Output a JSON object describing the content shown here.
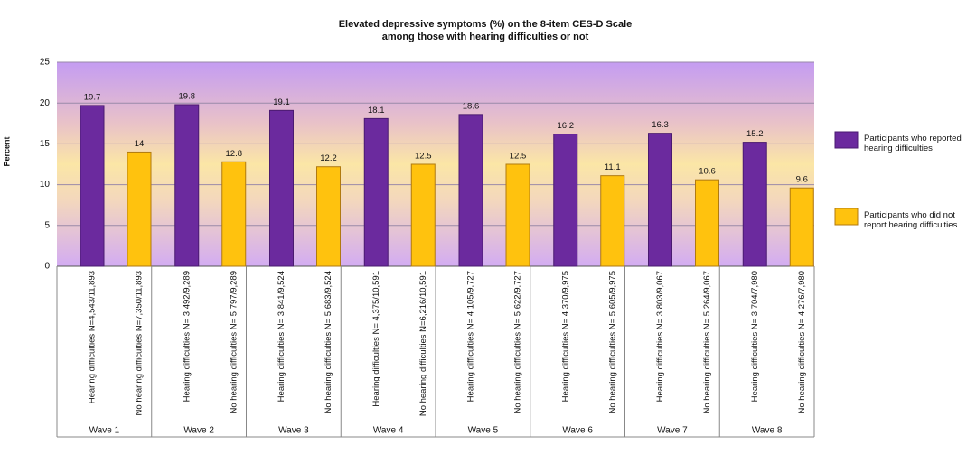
{
  "chart_data": {
    "type": "bar",
    "title": "Elevated depressive symptoms (%) on the 8-item CES-D Scale",
    "subtitle": "among those with hearing difficulties or not",
    "y_label": "Percent",
    "categories": [
      "Wave 1",
      "Wave 2",
      "Wave 3",
      "Wave 4",
      "Wave 5",
      "Wave 6",
      "Wave 7",
      "Wave 8"
    ],
    "ylim": [
      0,
      25
    ],
    "yticks": [
      0,
      5,
      10,
      15,
      20,
      25
    ],
    "grid": true,
    "series": [
      {
        "name": "Participants who reported hearing difficulties",
        "color": "#6b2a9e",
        "values": [
          19.7,
          19.8,
          19.1,
          18.1,
          18.6,
          16.2,
          16.3,
          15.2
        ],
        "bar_labels": [
          "Hearing difficulties N=4,543/11,893",
          "Hearing difficulties N= 3,492/9,289",
          "Hearing difficulties N= 3,841/9,524",
          "Hearing difficulties N= 4,375/10,591",
          "Hearing difficulties N= 4,105/9,727",
          "Hearing difficulties N= 4,370/9,975",
          "Hearing difficulties N= 3,803/9,067",
          "Hearing difficulties N= 3,704/7,980"
        ]
      },
      {
        "name": "Participants who did not report hearing difficulties",
        "color": "#ffc20e",
        "values": [
          14,
          12.8,
          12.2,
          12.5,
          12.5,
          11.1,
          10.6,
          9.6
        ],
        "bar_labels": [
          "No hearing difficulties N=7,350/11,893",
          "No hearing difficulties N= 5,797/9,289",
          "No hearing difficulties N= 5,683/9,524",
          "No hearing difficulties N=6,216/10,591",
          "No hearing difficulties N= 5,622/9,727",
          "No hearing difficulties N= 5,605/9,975",
          "No hearing difficulties N= 5,264/9,067",
          "No hearing difficulties N= 4,276/7,980"
        ]
      }
    ]
  }
}
